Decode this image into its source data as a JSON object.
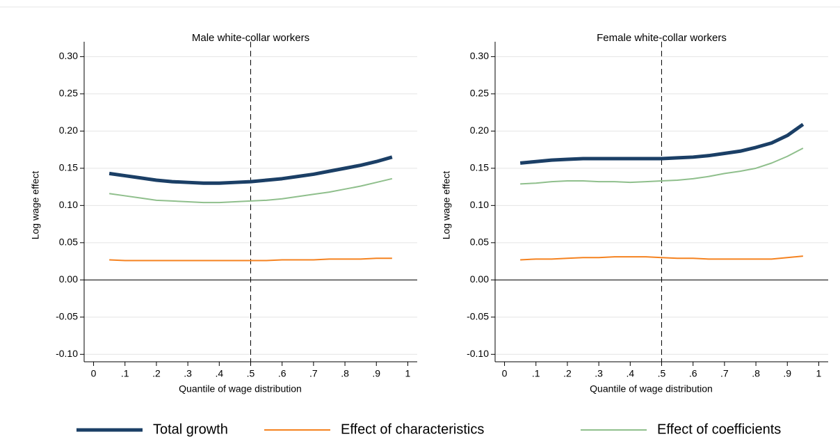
{
  "chart_data": [
    {
      "type": "line",
      "title": "Male white-collar workers",
      "xlabel": "Quantile of wage distribution",
      "ylabel": "Log wage effect",
      "x": [
        0.05,
        0.1,
        0.15,
        0.2,
        0.25,
        0.3,
        0.35,
        0.4,
        0.45,
        0.5,
        0.55,
        0.6,
        0.65,
        0.7,
        0.75,
        0.8,
        0.85,
        0.9,
        0.95
      ],
      "series": [
        {
          "name": "Total growth",
          "color": "#1b3f66",
          "values": [
            0.143,
            0.14,
            0.137,
            0.134,
            0.132,
            0.131,
            0.13,
            0.13,
            0.131,
            0.132,
            0.134,
            0.136,
            0.139,
            0.142,
            0.146,
            0.15,
            0.154,
            0.159,
            0.165
          ]
        },
        {
          "name": "Effect of characteristics",
          "color": "#f5821f",
          "values": [
            0.027,
            0.026,
            0.026,
            0.026,
            0.026,
            0.026,
            0.026,
            0.026,
            0.026,
            0.026,
            0.026,
            0.027,
            0.027,
            0.027,
            0.028,
            0.028,
            0.028,
            0.029,
            0.029
          ]
        },
        {
          "name": "Effect of coefficients",
          "color": "#8fbf8c",
          "values": [
            0.116,
            0.113,
            0.11,
            0.107,
            0.106,
            0.105,
            0.104,
            0.104,
            0.105,
            0.106,
            0.107,
            0.109,
            0.112,
            0.115,
            0.118,
            0.122,
            0.126,
            0.131,
            0.136
          ]
        }
      ],
      "xlim": [
        -0.03,
        1.03
      ],
      "ylim": [
        -0.11,
        0.32
      ],
      "xticks": [
        0,
        {
          "value": 0.1,
          "label": ".1"
        },
        {
          "value": 0.2,
          "label": ".2"
        },
        {
          "value": 0.3,
          "label": ".3"
        },
        {
          "value": 0.4,
          "label": ".4"
        },
        {
          "value": 0.5,
          "label": ".5"
        },
        {
          "value": 0.6,
          "label": ".6"
        },
        {
          "value": 0.7,
          "label": ".7"
        },
        {
          "value": 0.8,
          "label": ".8"
        },
        {
          "value": 0.9,
          "label": ".9"
        },
        1
      ],
      "yticks": [
        {
          "value": -0.1,
          "label": "-0.10"
        },
        {
          "value": -0.05,
          "label": "-0.05"
        },
        {
          "value": 0,
          "label": "0.00"
        },
        {
          "value": 0.05,
          "label": "0.05"
        },
        {
          "value": 0.1,
          "label": "0.10"
        },
        {
          "value": 0.15,
          "label": "0.15"
        },
        {
          "value": 0.2,
          "label": "0.20"
        },
        {
          "value": 0.25,
          "label": "0.25"
        },
        {
          "value": 0.3,
          "label": "0.30"
        }
      ],
      "grid": true,
      "vline": 0.5,
      "hline": 0
    },
    {
      "type": "line",
      "title": "Female white-collar workers",
      "xlabel": "Quantile of wage distribution",
      "ylabel": "Log wage effect",
      "x": [
        0.05,
        0.1,
        0.15,
        0.2,
        0.25,
        0.3,
        0.35,
        0.4,
        0.45,
        0.5,
        0.55,
        0.6,
        0.65,
        0.7,
        0.75,
        0.8,
        0.85,
        0.9,
        0.95
      ],
      "series": [
        {
          "name": "Total growth",
          "color": "#1b3f66",
          "values": [
            0.157,
            0.159,
            0.161,
            0.162,
            0.163,
            0.163,
            0.163,
            0.163,
            0.163,
            0.163,
            0.164,
            0.165,
            0.167,
            0.17,
            0.173,
            0.178,
            0.184,
            0.194,
            0.209
          ]
        },
        {
          "name": "Effect of characteristics",
          "color": "#f5821f",
          "values": [
            0.027,
            0.028,
            0.028,
            0.029,
            0.03,
            0.03,
            0.031,
            0.031,
            0.031,
            0.03,
            0.029,
            0.029,
            0.028,
            0.028,
            0.028,
            0.028,
            0.028,
            0.03,
            0.032
          ]
        },
        {
          "name": "Effect of coefficients",
          "color": "#8fbf8c",
          "values": [
            0.129,
            0.13,
            0.132,
            0.133,
            0.133,
            0.132,
            0.132,
            0.131,
            0.132,
            0.133,
            0.134,
            0.136,
            0.139,
            0.143,
            0.146,
            0.15,
            0.157,
            0.166,
            0.177
          ]
        }
      ],
      "xlim": [
        -0.03,
        1.03
      ],
      "ylim": [
        -0.11,
        0.32
      ],
      "xticks": [
        0,
        {
          "value": 0.1,
          "label": ".1"
        },
        {
          "value": 0.2,
          "label": ".2"
        },
        {
          "value": 0.3,
          "label": ".3"
        },
        {
          "value": 0.4,
          "label": ".4"
        },
        {
          "value": 0.5,
          "label": ".5"
        },
        {
          "value": 0.6,
          "label": ".6"
        },
        {
          "value": 0.7,
          "label": ".7"
        },
        {
          "value": 0.8,
          "label": ".8"
        },
        {
          "value": 0.9,
          "label": ".9"
        },
        1
      ],
      "yticks": [
        {
          "value": -0.1,
          "label": "-0.10"
        },
        {
          "value": -0.05,
          "label": "-0.05"
        },
        {
          "value": 0,
          "label": "0.00"
        },
        {
          "value": 0.05,
          "label": "0.05"
        },
        {
          "value": 0.1,
          "label": "0.10"
        },
        {
          "value": 0.15,
          "label": "0.15"
        },
        {
          "value": 0.2,
          "label": "0.20"
        },
        {
          "value": 0.25,
          "label": "0.25"
        },
        {
          "value": 0.3,
          "label": "0.30"
        }
      ],
      "grid": true,
      "vline": 0.5,
      "hline": 0
    }
  ]
}
